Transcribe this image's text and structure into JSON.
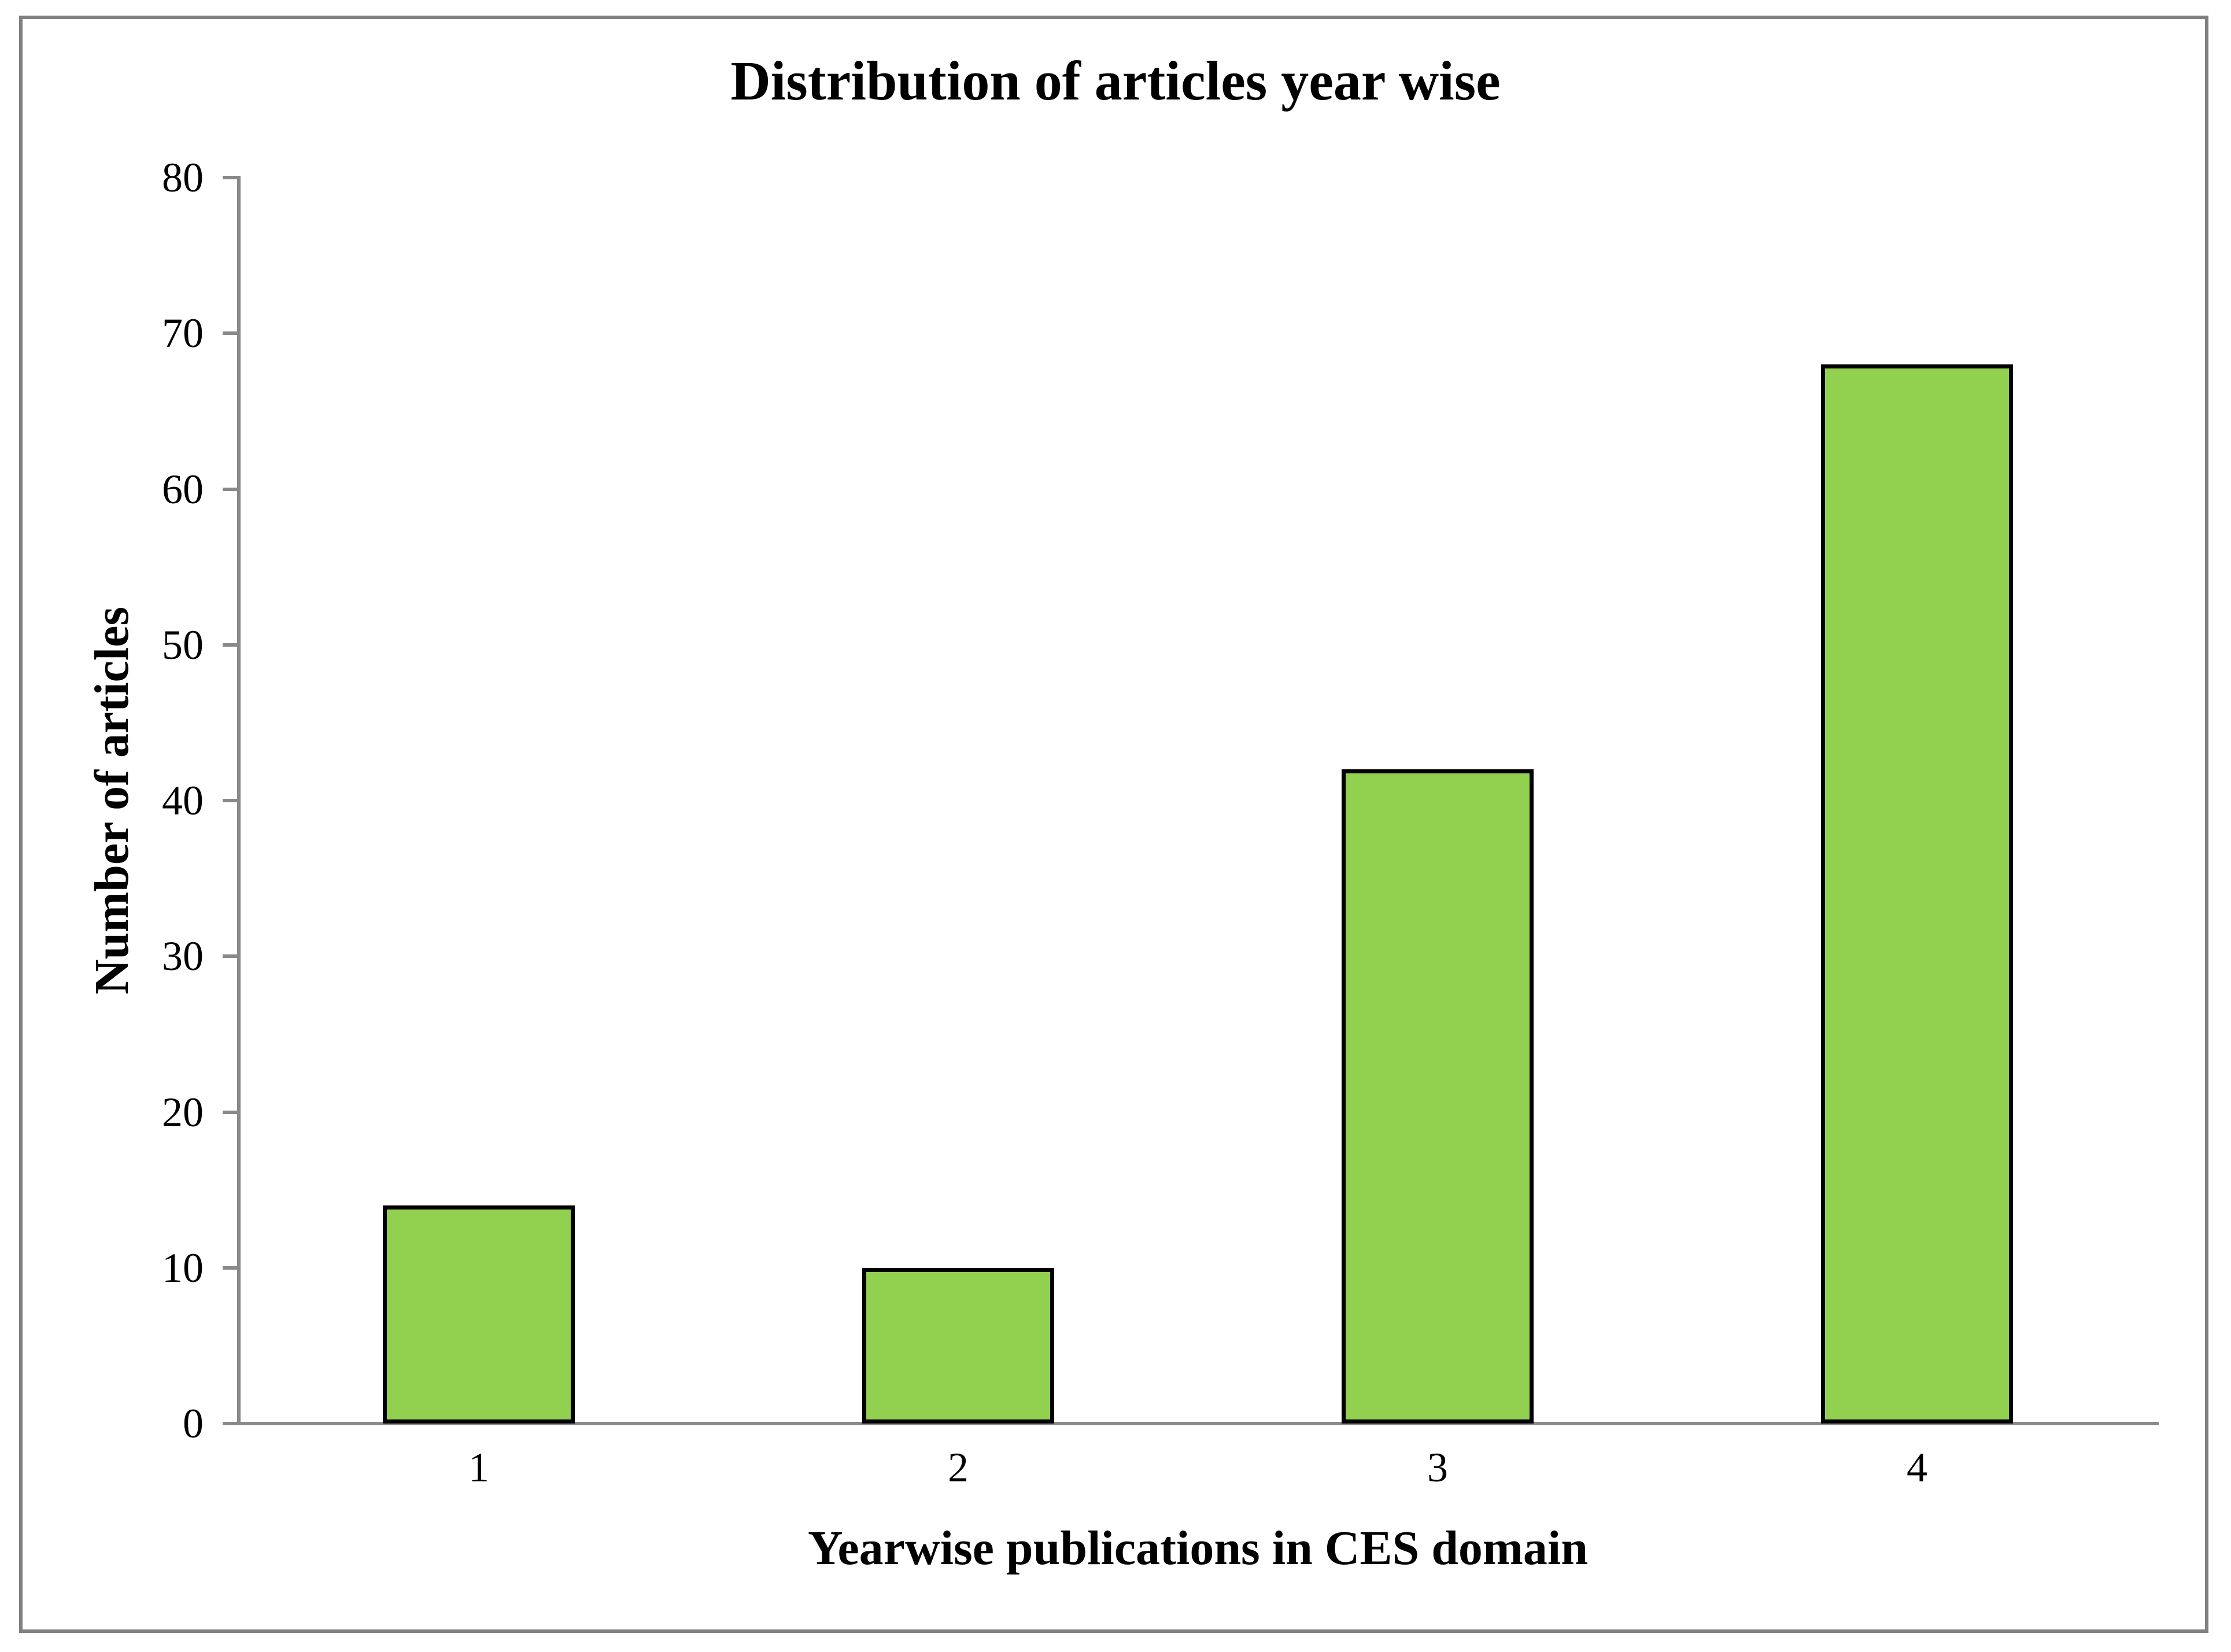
{
  "chart_data": {
    "type": "bar",
    "title": "Distribution of articles year wise",
    "categories": [
      "1",
      "2",
      "3",
      "4"
    ],
    "values": [
      14,
      10,
      42,
      68
    ],
    "xlabel": "Yearwise publications in CES domain",
    "ylabel": "Number of articles",
    "ylim": [
      0,
      80
    ],
    "yticks": [
      0,
      10,
      20,
      30,
      40,
      50,
      60,
      70,
      80
    ],
    "grid": false,
    "legend_position": "none",
    "colors": {
      "bar_fill": "#92D050",
      "bar_border": "#000000",
      "axis": "#898989",
      "frame_border": "#808080",
      "background": "#FFFFFF",
      "text": "#000000"
    }
  }
}
